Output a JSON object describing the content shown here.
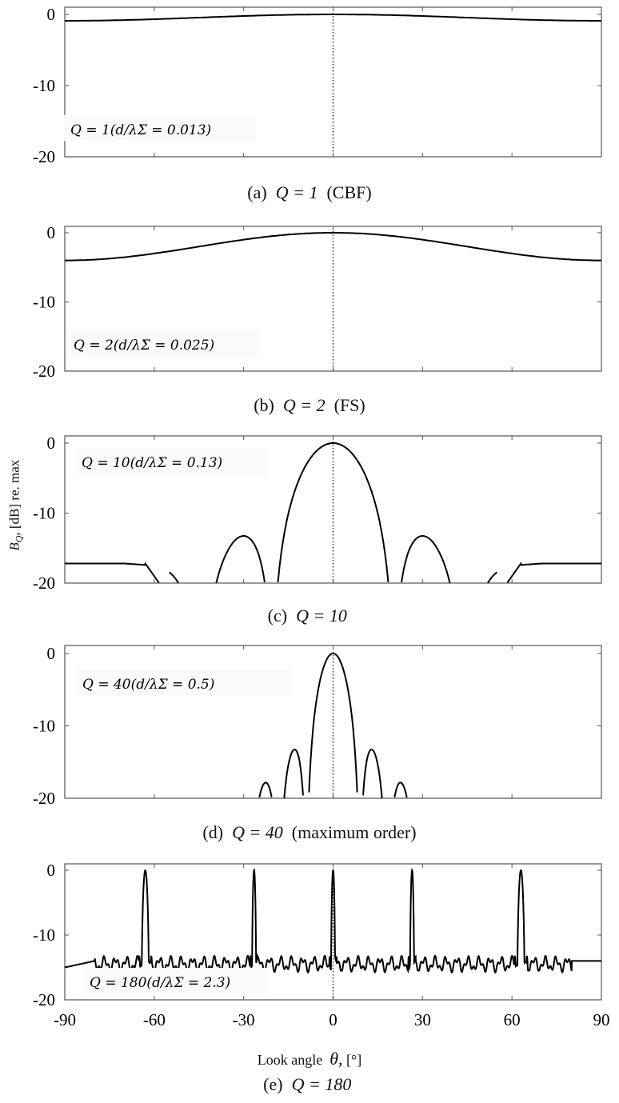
{
  "figure": {
    "ylabel": "B_Q, [dB] re. max",
    "ylabel_text": "[dB] re. max",
    "xlabel_prefix": "Look  angle",
    "xlabel_symbol": "θ,",
    "xlabel_unit": "[°]",
    "yticks": [
      "0",
      "-10",
      "-20"
    ],
    "xticks": [
      "-90",
      "-60",
      "-30",
      "0",
      "30",
      "60",
      "90"
    ]
  },
  "panels": [
    {
      "id": "a",
      "caption_tag": "(a)",
      "caption_eq": "Q = 1",
      "caption_note": "(CBF)",
      "annotation": "Q = 1(d/λΣ = 0.013)"
    },
    {
      "id": "b",
      "caption_tag": "(b)",
      "caption_eq": "Q = 2",
      "caption_note": "(FS)",
      "annotation": "Q = 2(d/λΣ = 0.025)"
    },
    {
      "id": "c",
      "caption_tag": "(c)",
      "caption_eq": "Q = 10",
      "caption_note": "",
      "annotation": "Q = 10(d/λΣ = 0.13)"
    },
    {
      "id": "d",
      "caption_tag": "(d)",
      "caption_eq": "Q = 40",
      "caption_note": "(maximum  order)",
      "annotation": "Q = 40(d/λΣ = 0.5)"
    },
    {
      "id": "e",
      "caption_tag": "(e)",
      "caption_eq": "Q = 180",
      "caption_note": "",
      "annotation": "Q = 180(d/λΣ = 2.3)"
    }
  ],
  "chart_data": [
    {
      "type": "line",
      "title": "(a) Q = 1 (CBF)",
      "annotation": "Q = 1 (d/λΣ = 0.013)",
      "xlabel": "Look angle θ, [°]",
      "ylabel": "B_Q, [dB] re. max",
      "xlim": [
        -90,
        90
      ],
      "ylim": [
        -20,
        0
      ],
      "xticks": [
        -90,
        -60,
        -30,
        0,
        30,
        60,
        90
      ],
      "yticks": [
        0,
        -10,
        -20
      ],
      "x": [
        -90,
        -60,
        -30,
        0,
        30,
        60,
        90
      ],
      "y": [
        -0.9,
        -0.7,
        -0.3,
        0,
        -0.3,
        -0.7,
        -0.9
      ],
      "reference_line": {
        "x": 0,
        "style": "dotted"
      }
    },
    {
      "type": "line",
      "title": "(b) Q = 2 (FS)",
      "annotation": "Q = 2 (d/λΣ = 0.025)",
      "xlim": [
        -90,
        90
      ],
      "ylim": [
        -20,
        0
      ],
      "x": [
        -90,
        -75,
        -60,
        -45,
        -30,
        -15,
        0,
        15,
        30,
        45,
        60,
        75,
        90
      ],
      "y": [
        -4.0,
        -3.7,
        -3.0,
        -2.0,
        -1.0,
        -0.3,
        0,
        -0.3,
        -1.0,
        -2.0,
        -3.0,
        -3.7,
        -4.0
      ],
      "reference_line": {
        "x": 0,
        "style": "dotted"
      }
    },
    {
      "type": "line",
      "title": "(c) Q = 10",
      "annotation": "Q = 10 (d/λΣ = 0.13)",
      "xlim": [
        -90,
        90
      ],
      "ylim": [
        -20,
        0
      ],
      "x": [
        -90,
        -80,
        -70,
        -63,
        -55,
        -45,
        -37,
        -30,
        -24,
        -19,
        -10,
        0,
        10,
        19,
        24,
        30,
        37,
        45,
        55,
        63,
        70,
        80,
        90
      ],
      "y": [
        -17.2,
        -17.2,
        -17.5,
        -20,
        -20,
        -16.0,
        -13.1,
        -16.5,
        -20,
        -20,
        -7.0,
        0,
        -7.0,
        -20,
        -20,
        -16.5,
        -13.1,
        -16.0,
        -20,
        -20,
        -17.5,
        -17.2,
        -17.2
      ],
      "reference_line": {
        "x": 0,
        "style": "dotted"
      }
    },
    {
      "type": "line",
      "title": "(d) Q = 40 (maximum order)",
      "annotation": "Q = 40 (d/λΣ = 0.5)",
      "xlim": [
        -90,
        90
      ],
      "ylim": [
        -20,
        0
      ],
      "mainlobe": {
        "x": 0,
        "y": 0,
        "null_left": -6,
        "null_right": 5.5
      },
      "sidelobes": [
        {
          "x": -58,
          "y": -20
        },
        {
          "x": -41,
          "y": -19.6
        },
        {
          "x": -33,
          "y": -19.9
        },
        {
          "x": -26,
          "y": -18.4
        },
        {
          "x": -20,
          "y": -18.3
        },
        {
          "x": -15,
          "y": -16.1
        },
        {
          "x": -8.5,
          "y": -12.7
        },
        {
          "x": 8,
          "y": -13.2
        },
        {
          "x": 14,
          "y": -16.4
        },
        {
          "x": 20,
          "y": -17.6
        },
        {
          "x": 27,
          "y": -19.6
        },
        {
          "x": 33,
          "y": -19.6
        },
        {
          "x": 40,
          "y": -19.9
        }
      ],
      "reference_line": {
        "x": 0,
        "style": "dotted"
      }
    },
    {
      "type": "line",
      "title": "(e) Q = 180",
      "annotation": "Q = 180 (d/λΣ = 2.3)",
      "xlim": [
        -90,
        90
      ],
      "ylim": [
        -20,
        0
      ],
      "peaks": [
        {
          "x": -63,
          "y": 0
        },
        {
          "x": -26.5,
          "y": 0
        },
        {
          "x": 0,
          "y": 0
        },
        {
          "x": 26.5,
          "y": 0
        },
        {
          "x": 63,
          "y": 0
        }
      ],
      "near_sidelobes_db": -10.6,
      "floor_db_range": [
        -15.5,
        -13.5
      ],
      "edge_values": {
        "x_-90": -15.0,
        "x_90": -13.9
      },
      "reference_line": {
        "x": 0,
        "style": "dotted"
      }
    }
  ]
}
